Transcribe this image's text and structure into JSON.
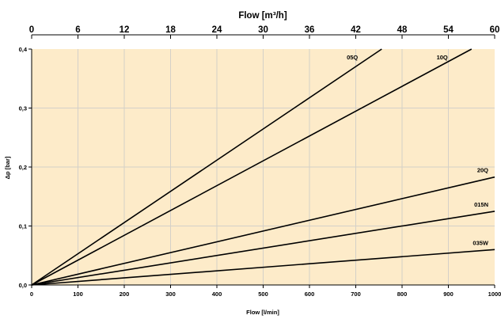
{
  "chart_data": {
    "type": "line",
    "x_axis_bottom": {
      "label": "Flow [l/min]",
      "range": [
        0,
        1000
      ],
      "ticks": [
        "0",
        "100",
        "200",
        "300",
        "400",
        "500",
        "600",
        "700",
        "800",
        "900",
        "1000"
      ]
    },
    "x_axis_top": {
      "label": "Flow [m³/h]",
      "range": [
        0,
        60
      ],
      "ticks": [
        "0",
        "6",
        "12",
        "18",
        "24",
        "30",
        "36",
        "42",
        "48",
        "54",
        "60"
      ]
    },
    "y_axis": {
      "label": "Δp [bar]",
      "range": [
        0,
        0.4
      ],
      "ticks": [
        "0,0",
        "0,1",
        "0,2",
        "0,3",
        "0,4"
      ]
    },
    "grid": true,
    "colors": {
      "plot_background": "#fdebc9",
      "grid": "#d4d0c8",
      "line": "#000000"
    },
    "series": [
      {
        "name": "05Q",
        "x": [
          0,
          756
        ],
        "y": [
          0,
          0.4
        ]
      },
      {
        "name": "10Q",
        "x": [
          0,
          950
        ],
        "y": [
          0,
          0.4
        ]
      },
      {
        "name": "20Q",
        "x": [
          0,
          1000
        ],
        "y": [
          0,
          0.183
        ]
      },
      {
        "name": "015N",
        "x": [
          0,
          1000
        ],
        "y": [
          0,
          0.125
        ]
      },
      {
        "name": "035W",
        "x": [
          0,
          1000
        ],
        "y": [
          0,
          0.06
        ]
      }
    ]
  }
}
